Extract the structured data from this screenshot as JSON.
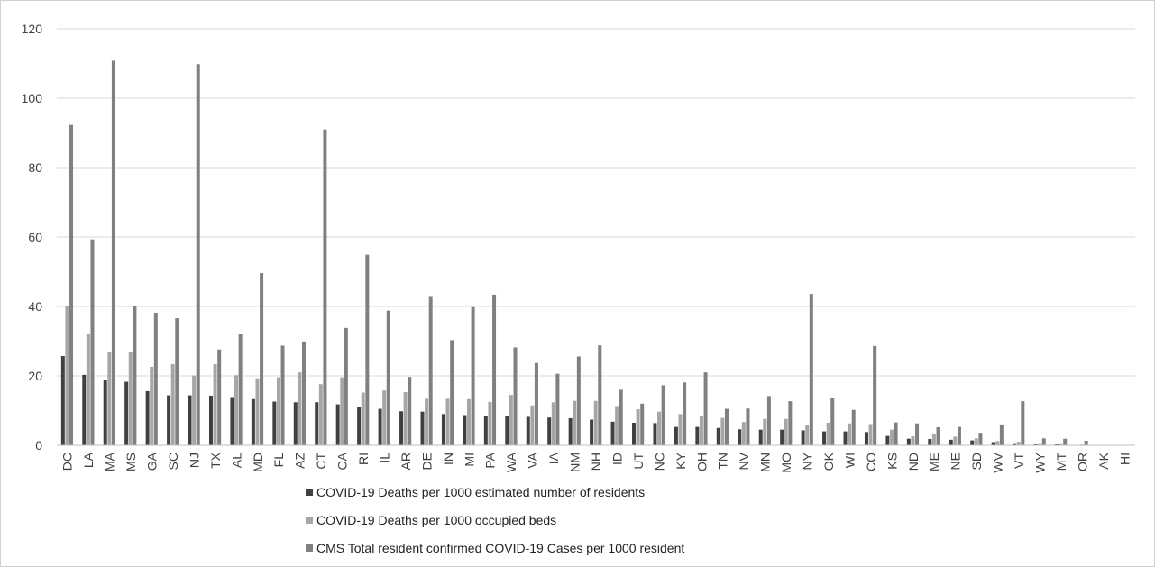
{
  "chart_data": {
    "type": "bar",
    "title": "",
    "xlabel": "",
    "ylabel": "",
    "ylim": [
      0,
      120
    ],
    "yticks": [
      0,
      20,
      40,
      60,
      80,
      100,
      120
    ],
    "grid": true,
    "legend_position": "bottom",
    "categories": [
      "DC",
      "LA",
      "MA",
      "MS",
      "GA",
      "SC",
      "NJ",
      "TX",
      "AL",
      "MD",
      "FL",
      "AZ",
      "CT",
      "CA",
      "RI",
      "IL",
      "AR",
      "DE",
      "IN",
      "MI",
      "PA",
      "WA",
      "VA",
      "IA",
      "NM",
      "NH",
      "ID",
      "UT",
      "NC",
      "KY",
      "OH",
      "TN",
      "NV",
      "MN",
      "MO",
      "NY",
      "OK",
      "WI",
      "CO",
      "KS",
      "ND",
      "ME",
      "NE",
      "SD",
      "WV",
      "VT",
      "WY",
      "MT",
      "OR",
      "AK",
      "HI"
    ],
    "series": [
      {
        "name": "COVID-19 Deaths per 1000 estimated number of residents",
        "color": "#404040",
        "values": [
          25.7,
          20.3,
          18.7,
          18.3,
          15.6,
          14.4,
          14.4,
          14.3,
          13.9,
          13.3,
          12.6,
          12.4,
          12.4,
          11.8,
          11.0,
          10.5,
          9.8,
          9.7,
          9.0,
          8.7,
          8.5,
          8.5,
          8.2,
          8.0,
          7.8,
          7.4,
          6.8,
          6.5,
          6.4,
          5.3,
          5.3,
          5.0,
          4.6,
          4.5,
          4.5,
          4.3,
          4.0,
          4.0,
          3.8,
          2.7,
          1.9,
          1.8,
          1.6,
          1.4,
          0.9,
          0.6,
          0.5,
          0.3,
          0.1,
          0,
          0
        ]
      },
      {
        "name": "COVID-19 Deaths per 1000 occupied beds",
        "color": "#a6a6a6",
        "values": [
          40.0,
          32.0,
          26.8,
          26.8,
          22.6,
          23.4,
          20.1,
          23.4,
          20.2,
          19.3,
          19.6,
          21.0,
          17.6,
          19.6,
          15.2,
          15.8,
          15.3,
          13.4,
          13.4,
          13.3,
          12.5,
          14.5,
          11.5,
          12.4,
          12.8,
          12.8,
          11.3,
          10.4,
          9.7,
          9.0,
          8.5,
          7.9,
          6.7,
          7.6,
          7.6,
          5.9,
          6.5,
          6.3,
          6.1,
          4.5,
          2.6,
          3.4,
          2.5,
          2.0,
          1.2,
          1.0,
          0.6,
          0.6,
          0.2,
          0,
          0
        ]
      },
      {
        "name": "CMS Total resident confirmed COVID-19 Cases per 1000 resident",
        "color": "#808080",
        "values": [
          92.3,
          59.3,
          110.8,
          40.2,
          38.2,
          36.6,
          109.8,
          27.6,
          32.0,
          49.6,
          28.7,
          29.9,
          91.0,
          33.8,
          54.9,
          38.8,
          19.7,
          43.0,
          30.3,
          39.8,
          43.4,
          28.2,
          23.7,
          20.6,
          25.6,
          28.8,
          16.0,
          12.0,
          17.3,
          18.1,
          21.0,
          10.5,
          10.6,
          14.2,
          12.7,
          43.6,
          13.6,
          10.2,
          28.6,
          6.6,
          6.3,
          5.2,
          5.3,
          3.6,
          6.0,
          12.7,
          2.0,
          1.9,
          1.3,
          0,
          0
        ]
      }
    ]
  }
}
